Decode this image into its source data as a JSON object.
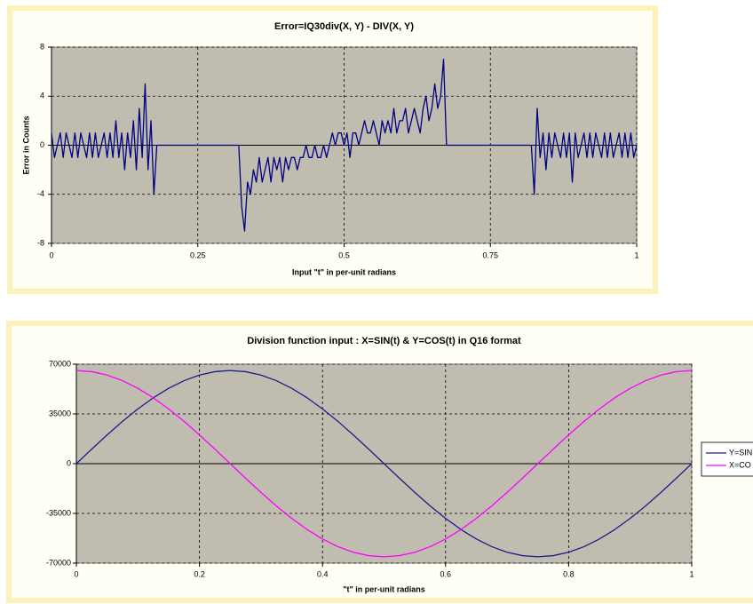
{
  "chart_data": [
    {
      "type": "line",
      "title": "Error=IQ30div(X, Y) - DIV(X, Y)",
      "xlabel": "Input \"t\" in per-unit radians",
      "ylabel": "Error in Counts",
      "x": [
        0,
        0.005,
        0.01,
        0.015,
        0.02,
        0.025,
        0.03,
        0.035,
        0.04,
        0.045,
        0.05,
        0.055,
        0.06,
        0.065,
        0.07,
        0.075,
        0.08,
        0.085,
        0.09,
        0.095,
        0.1,
        0.105,
        0.11,
        0.115,
        0.12,
        0.125,
        0.13,
        0.135,
        0.14,
        0.145,
        0.15,
        0.155,
        0.16,
        0.165,
        0.17,
        0.175,
        0.18,
        0.185,
        0.19,
        0.195,
        0.2,
        0.205,
        0.21,
        0.215,
        0.22,
        0.225,
        0.23,
        0.235,
        0.24,
        0.245,
        0.25,
        0.255,
        0.26,
        0.265,
        0.27,
        0.275,
        0.28,
        0.285,
        0.29,
        0.295,
        0.3,
        0.305,
        0.31,
        0.315,
        0.32,
        0.325,
        0.33,
        0.335,
        0.34,
        0.345,
        0.35,
        0.355,
        0.36,
        0.365,
        0.37,
        0.375,
        0.38,
        0.385,
        0.39,
        0.395,
        0.4,
        0.405,
        0.41,
        0.415,
        0.42,
        0.425,
        0.43,
        0.435,
        0.44,
        0.445,
        0.45,
        0.455,
        0.46,
        0.465,
        0.47,
        0.475,
        0.48,
        0.485,
        0.49,
        0.495,
        0.5,
        0.505,
        0.51,
        0.515,
        0.52,
        0.525,
        0.53,
        0.535,
        0.54,
        0.545,
        0.55,
        0.555,
        0.56,
        0.565,
        0.57,
        0.575,
        0.58,
        0.585,
        0.59,
        0.595,
        0.6,
        0.605,
        0.61,
        0.615,
        0.62,
        0.625,
        0.63,
        0.635,
        0.64,
        0.645,
        0.65,
        0.655,
        0.66,
        0.665,
        0.67,
        0.675,
        0.68,
        0.685,
        0.69,
        0.695,
        0.7,
        0.705,
        0.71,
        0.715,
        0.72,
        0.725,
        0.73,
        0.735,
        0.74,
        0.745,
        0.75,
        0.755,
        0.76,
        0.765,
        0.77,
        0.775,
        0.78,
        0.785,
        0.79,
        0.795,
        0.8,
        0.805,
        0.81,
        0.815,
        0.82,
        0.825,
        0.83,
        0.835,
        0.84,
        0.845,
        0.85,
        0.855,
        0.86,
        0.865,
        0.87,
        0.875,
        0.88,
        0.885,
        0.89,
        0.895,
        0.9,
        0.905,
        0.91,
        0.915,
        0.92,
        0.925,
        0.93,
        0.935,
        0.94,
        0.945,
        0.95,
        0.955,
        0.96,
        0.965,
        0.97,
        0.975,
        0.98,
        0.985,
        0.99,
        0.995,
        1
      ],
      "values": [
        1,
        -1,
        0,
        1,
        -1,
        1,
        0,
        -1,
        1,
        -1,
        1,
        0,
        -1,
        1,
        -1,
        1,
        -1,
        0,
        1,
        -1,
        1,
        -1,
        2,
        -1,
        1,
        -2,
        1,
        -1,
        2,
        -2,
        3,
        -1,
        5,
        -2,
        2,
        -4,
        0,
        0,
        0,
        0,
        0,
        0,
        0,
        0,
        0,
        0,
        0,
        0,
        0,
        0,
        0,
        0,
        0,
        0,
        0,
        0,
        0,
        0,
        0,
        0,
        0,
        0,
        0,
        0,
        0,
        -5,
        -7,
        -3,
        -4,
        -2,
        -3,
        -1,
        -3,
        -2,
        -1,
        -3,
        -1,
        -2,
        -1,
        -3,
        -1,
        -2,
        -1,
        -1,
        -2,
        -1,
        -1,
        0,
        -1,
        -1,
        0,
        -1,
        -1,
        0,
        -1,
        0,
        1,
        0,
        1,
        1,
        0,
        1,
        -1,
        1,
        1,
        0,
        1,
        2,
        1,
        1,
        2,
        1,
        0,
        2,
        1,
        2,
        1,
        3,
        1,
        2,
        2,
        3,
        1,
        2,
        3,
        2,
        1,
        3,
        4,
        2,
        3,
        5,
        3,
        4,
        7,
        0,
        0,
        0,
        0,
        0,
        0,
        0,
        0,
        0,
        0,
        0,
        0,
        0,
        0,
        0,
        0,
        0,
        0,
        0,
        0,
        0,
        0,
        0,
        0,
        0,
        0,
        0,
        0,
        0,
        0,
        -4,
        3,
        -1,
        1,
        -2,
        1,
        -1,
        1,
        0,
        -1,
        1,
        -1,
        1,
        -3,
        1,
        -1,
        0,
        1,
        -1,
        1,
        -1,
        1,
        0,
        -1,
        1,
        -1,
        1,
        -1,
        0,
        1,
        -1,
        1,
        -1,
        1,
        -1,
        0
      ],
      "color": "#000080",
      "xlim": [
        0,
        1
      ],
      "xticks": [
        0,
        0.25,
        0.5,
        0.75,
        1
      ],
      "ylim": [
        -8,
        8
      ],
      "yticks": [
        -8,
        -4,
        0,
        4,
        8
      ],
      "grid": true
    },
    {
      "type": "line",
      "title": "Division function input : X=SIN(t) & Y=COS(t) in Q16 format",
      "xlabel": "\"t\" in per-unit radians",
      "x": [
        0,
        0.025,
        0.05,
        0.075,
        0.1,
        0.125,
        0.15,
        0.175,
        0.2,
        0.225,
        0.25,
        0.275,
        0.3,
        0.325,
        0.35,
        0.375,
        0.4,
        0.425,
        0.45,
        0.475,
        0.5,
        0.525,
        0.55,
        0.575,
        0.6,
        0.625,
        0.65,
        0.675,
        0.7,
        0.725,
        0.75,
        0.775,
        0.8,
        0.825,
        0.85,
        0.875,
        0.9,
        0.925,
        0.95,
        0.975,
        1
      ],
      "series": [
        {
          "name": "Y=SIN",
          "color": "#1c1c8c",
          "values": [
            0,
            10252,
            20252,
            29753,
            38521,
            46341,
            53020,
            58393,
            62328,
            64729,
            65536,
            64729,
            62328,
            58393,
            53020,
            46341,
            38521,
            29753,
            20252,
            10252,
            0,
            -10252,
            -20252,
            -29753,
            -38521,
            -46341,
            -53020,
            -58393,
            -62328,
            -64729,
            -65536,
            -64729,
            -62328,
            -58393,
            -53020,
            -46341,
            -38521,
            -29753,
            -20252,
            -10252,
            0
          ]
        },
        {
          "name": "X=CO",
          "color": "#ff00ff",
          "values": [
            65536,
            64729,
            62328,
            58393,
            53020,
            46341,
            38521,
            29753,
            20252,
            10252,
            0,
            -10252,
            -20252,
            -29753,
            -38521,
            -46341,
            -53020,
            -58393,
            -62328,
            -64729,
            -65536,
            -64729,
            -62328,
            -58393,
            -53020,
            -46341,
            -38521,
            -29753,
            -20252,
            -10252,
            0,
            10252,
            20252,
            29753,
            38521,
            46341,
            53020,
            58393,
            62328,
            64729,
            65536
          ]
        }
      ],
      "xlim": [
        0,
        1
      ],
      "xticks": [
        0,
        0.2,
        0.4,
        0.6,
        0.8,
        1
      ],
      "ylim": [
        -70000,
        70000
      ],
      "yticks": [
        -70000,
        -35000,
        0,
        35000,
        70000
      ],
      "grid": true,
      "legend": "right"
    }
  ]
}
